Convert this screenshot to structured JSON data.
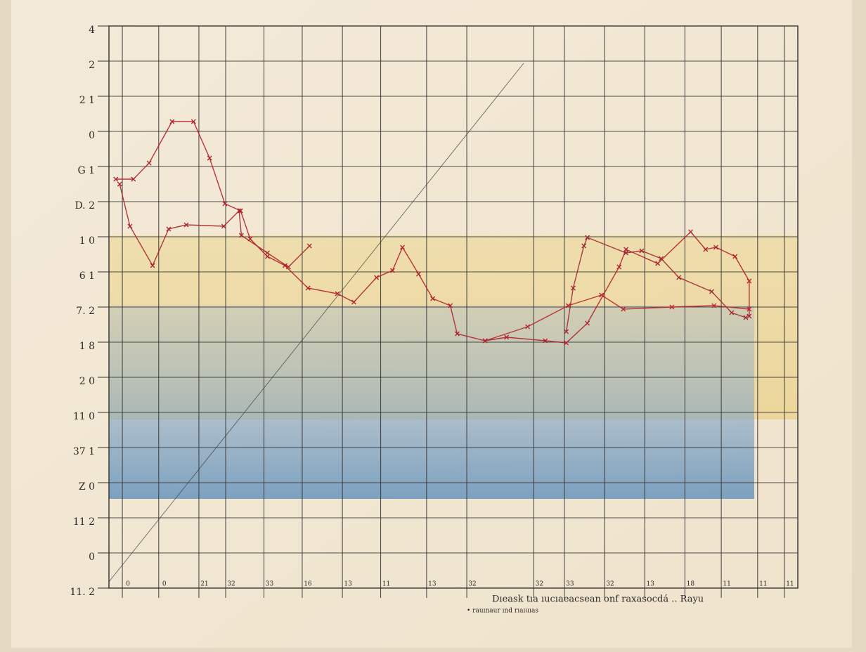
{
  "chart_data": {
    "type": "line",
    "caption": "Dıeask tıa ıucıaeacsean onf raxasocdá .. Rayu",
    "note": "• rauınaur ınd rıaıuıas",
    "xlim": [
      0,
      18
    ],
    "ylim": [
      0,
      16
    ],
    "grid": true,
    "xticks": [
      {
        "value": 0.35,
        "label": "0"
      },
      {
        "value": 1.3,
        "label": "0"
      },
      {
        "value": 2.35,
        "label": "21"
      },
      {
        "value": 3.05,
        "label": "32"
      },
      {
        "value": 4.05,
        "label": "33"
      },
      {
        "value": 5.05,
        "label": "16"
      },
      {
        "value": 6.1,
        "label": "13"
      },
      {
        "value": 7.1,
        "label": "11"
      },
      {
        "value": 8.3,
        "label": "13"
      },
      {
        "value": 9.35,
        "label": "32"
      },
      {
        "value": 11.1,
        "label": "32"
      },
      {
        "value": 11.9,
        "label": "33"
      },
      {
        "value": 12.95,
        "label": "32"
      },
      {
        "value": 14.0,
        "label": "13"
      },
      {
        "value": 15.05,
        "label": "18"
      },
      {
        "value": 16.0,
        "label": "11"
      },
      {
        "value": 16.95,
        "label": "11"
      },
      {
        "value": 17.65,
        "label": "11"
      }
    ],
    "yticks": [
      {
        "value": 0,
        "label": "11. 2"
      },
      {
        "value": 1,
        "label": "0"
      },
      {
        "value": 2,
        "label": "11 2"
      },
      {
        "value": 3,
        "label": "Z 0"
      },
      {
        "value": 4,
        "label": "37 1"
      },
      {
        "value": 5,
        "label": "11 0"
      },
      {
        "value": 6,
        "label": "2 0"
      },
      {
        "value": 7,
        "label": "1 8"
      },
      {
        "value": 8,
        "label": "7. 2"
      },
      {
        "value": 9,
        "label": "6 1"
      },
      {
        "value": 10,
        "label": "1 0"
      },
      {
        "value": 11,
        "label": "D. 2"
      },
      {
        "value": 12,
        "label": "G 1"
      },
      {
        "value": 13,
        "label": "0"
      },
      {
        "value": 14,
        "label": "2 1"
      },
      {
        "value": 15,
        "label": "2"
      },
      {
        "value": 16,
        "label": "4"
      }
    ],
    "series": [
      {
        "color": "#b3202c",
        "x": [
          0.18,
          0.64,
          1.05,
          1.65,
          2.21,
          2.63,
          3.03,
          3.44,
          3.69,
          4.14,
          4.6,
          5.2,
          5.97,
          6.4,
          6.99,
          7.41,
          7.67,
          8.09,
          8.46,
          8.92,
          9.1,
          9.83,
          10.39,
          11.4,
          11.95,
          12.5,
          13.33,
          13.51,
          14.34,
          15.2,
          15.59,
          15.86,
          16.36,
          16.73,
          16.73
        ],
        "values": [
          11.64,
          11.64,
          12.1,
          13.28,
          13.28,
          12.24,
          10.94,
          10.74,
          9.94,
          9.44,
          9.18,
          8.54,
          8.38,
          8.14,
          8.84,
          9.04,
          9.7,
          8.94,
          8.24,
          8.04,
          7.24,
          7.04,
          7.14,
          7.04,
          6.98,
          7.54,
          9.14,
          9.64,
          9.24,
          10.14,
          9.64,
          9.7,
          9.44,
          8.74,
          7.74
        ]
      },
      {
        "color": "#a8242e",
        "x": [
          0.28,
          0.55,
          1.14,
          1.56,
          2.02,
          3.0,
          3.4,
          3.46,
          4.14,
          4.69,
          5.24
        ],
        "values": [
          11.5,
          10.3,
          9.18,
          10.22,
          10.34,
          10.3,
          10.74,
          10.04,
          9.54,
          9.14,
          9.74
        ]
      },
      {
        "color": "#b8262f",
        "x": [
          9.83,
          10.94,
          12.0,
          12.87,
          13.44,
          14.71,
          15.81,
          16.73
        ],
        "values": [
          7.04,
          7.44,
          8.04,
          8.34,
          7.94,
          8.0,
          8.04,
          7.94
        ]
      },
      {
        "color": "#9e2a33",
        "x": [
          11.95,
          12.13,
          12.41,
          12.5,
          13.51,
          13.92,
          14.43,
          14.89,
          15.75,
          16.27,
          16.64
        ],
        "values": [
          7.3,
          8.54,
          9.74,
          9.98,
          9.54,
          9.6,
          9.38,
          8.84,
          8.44,
          7.84,
          7.7
        ]
      }
    ]
  }
}
